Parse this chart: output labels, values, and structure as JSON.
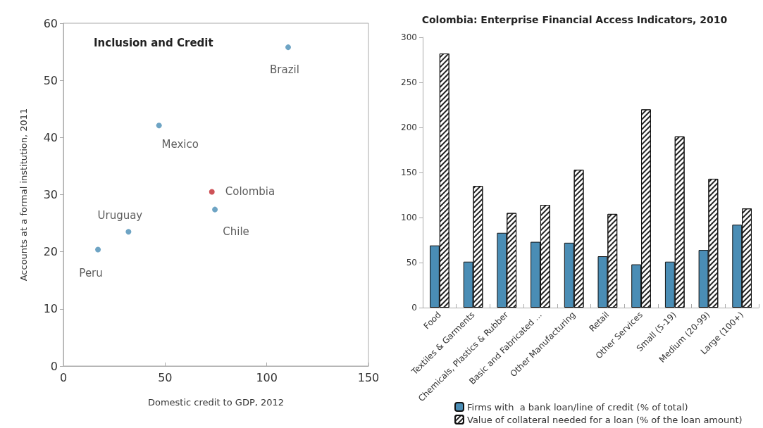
{
  "chart_data": [
    {
      "type": "scatter",
      "title": "Inclusion and Credit",
      "xlabel": "Domestic credit to GDP, 2012",
      "ylabel": "Accounts at a formal institution, 2011",
      "xlim": [
        0,
        150
      ],
      "xticks": [
        0,
        50,
        100,
        150
      ],
      "ylim": [
        0,
        60
      ],
      "yticks": [
        0,
        10,
        20,
        30,
        40,
        50,
        60
      ],
      "grid": false,
      "legend": false,
      "marker": "circle",
      "series": [
        {
          "name": "Brazil",
          "color": "#4a8db5",
          "x": [
            110.5
          ],
          "values": [
            55.8
          ]
        },
        {
          "name": "Mexico",
          "color": "#4a8db5",
          "x": [
            47
          ],
          "values": [
            42.1
          ]
        },
        {
          "name": "Colombia",
          "color": "#c1272d",
          "x": [
            73
          ],
          "values": [
            30.5
          ]
        },
        {
          "name": "Chile",
          "color": "#4a8db5",
          "x": [
            74.5
          ],
          "values": [
            27.4
          ]
        },
        {
          "name": "Uruguay",
          "color": "#4a8db5",
          "x": [
            32
          ],
          "values": [
            23.5
          ]
        },
        {
          "name": "Peru",
          "color": "#4a8db5",
          "x": [
            17
          ],
          "values": [
            20.4
          ]
        }
      ]
    },
    {
      "type": "bar",
      "title": "Colombia: Enterprise Financial Access Indicators, 2010",
      "categories": [
        "Food",
        "Textiles & Garments",
        "Chemicals, Plastics & Rubber",
        "Basic and Fabricated ...",
        "Other Manufacturing",
        "Retail",
        "Other Services",
        "Small (5-19)",
        "Medium (20-99)",
        "Large (100+)"
      ],
      "ylim": [
        0,
        300
      ],
      "yticks": [
        0,
        50,
        100,
        150,
        200,
        250,
        300
      ],
      "grid": false,
      "legend": "bottom",
      "series": [
        {
          "name": "Firms with  a bank loan/line of credit (% of total)",
          "color": "#4a8db5",
          "values": [
            69,
            51,
            83,
            73,
            72,
            57,
            48,
            51,
            64,
            92
          ]
        },
        {
          "name": "Value of collateral needed for a loan (% of the loan amount)",
          "color": "#ffffff",
          "values": [
            282,
            135,
            105,
            114,
            153,
            104,
            220,
            190,
            143,
            110
          ]
        }
      ]
    }
  ]
}
